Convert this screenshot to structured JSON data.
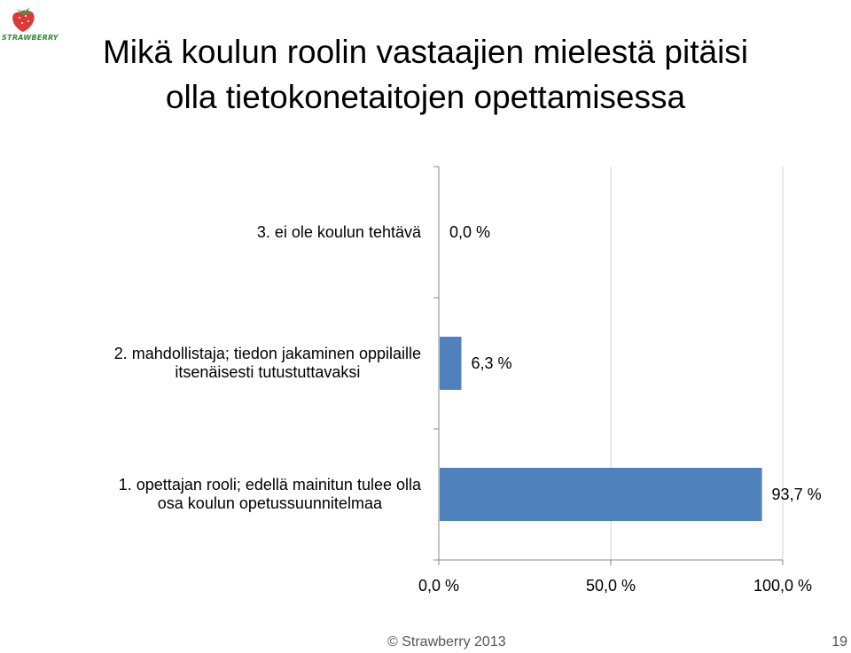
{
  "title": {
    "line1": "Mikä koulun roolin vastaajien mielestä pitäisi",
    "line2": "olla tietokonetaitojen opettamisessa"
  },
  "logo": {
    "text": "STRAWBERRY",
    "icon": "strawberry-icon"
  },
  "colors": {
    "bar": "#4f81bd",
    "axis": "#888888",
    "grid": "#d9d9d9"
  },
  "chart_data": {
    "type": "bar",
    "orientation": "horizontal",
    "categories": [
      "3. ei ole koulun tehtävä",
      "2. mahdollistaja; tiedon jakaminen oppilaille itsenäisesti tutustuttavaksi",
      "1. opettajan rooli; edellä mainitun tulee olla osa koulun opetussuunnitelmaa"
    ],
    "category_lines": [
      [
        "3. ei ole koulun tehtävä"
      ],
      [
        "2. mahdollistaja; tiedon jakaminen oppilaille",
        "itsenäisesti tutustuttavaksi"
      ],
      [
        "1. opettajan rooli; edellä mainitun tulee olla",
        "osa koulun opetussuunnitelmaa"
      ]
    ],
    "values": [
      0.0,
      6.3,
      93.7
    ],
    "data_labels": [
      "0,0 %",
      "6,3 %",
      "93,7 %"
    ],
    "xlim": [
      0,
      100
    ],
    "x_ticks": [
      0,
      50,
      100
    ],
    "x_tick_labels": [
      "0,0 %",
      "50,0 %",
      "100,0 %"
    ],
    "grid": true
  },
  "footer": {
    "copyright": "© Strawberry 2013",
    "page_number": "19"
  }
}
